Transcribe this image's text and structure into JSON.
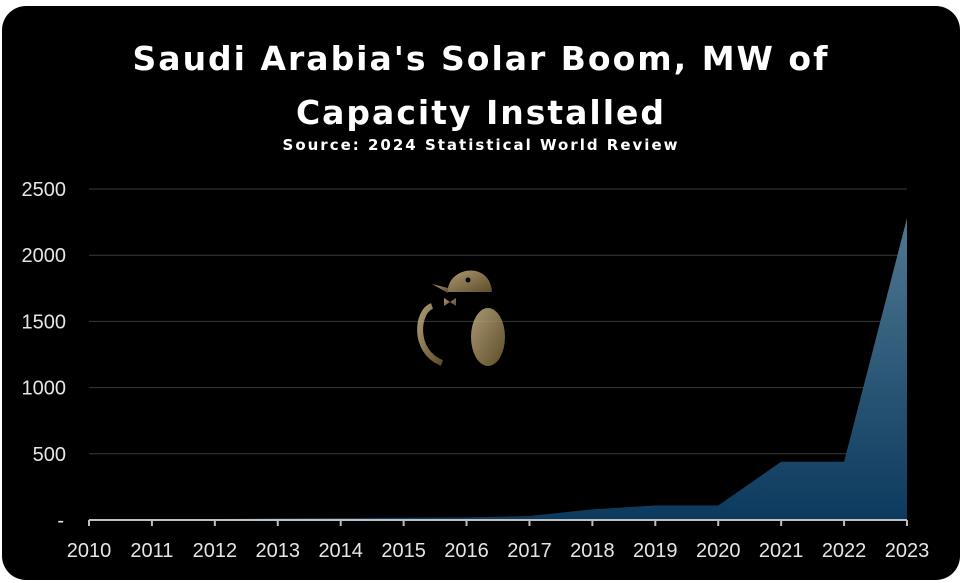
{
  "chart_data": {
    "type": "area",
    "title": "Saudi Arabia's Solar Boom, MW of Capacity Installed",
    "title_line1": "Saudi Arabia's Solar Boom, MW of",
    "title_line2": "Capacity Installed",
    "subtitle": "Source: 2024 Statistical World Review",
    "xlabel": "",
    "ylabel": "",
    "x": [
      "2010",
      "2011",
      "2012",
      "2013",
      "2014",
      "2015",
      "2016",
      "2017",
      "2018",
      "2019",
      "2020",
      "2021",
      "2022",
      "2023"
    ],
    "series": [
      {
        "name": "MW of Capacity Installed",
        "values": [
          1,
          2,
          7,
          12,
          15,
          17,
          20,
          30,
          80,
          110,
          110,
          440,
          440,
          2280
        ]
      }
    ],
    "yticks": [
      "-",
      "500",
      "1000",
      "1500",
      "2000",
      "2500"
    ],
    "ylim": [
      0,
      2500
    ],
    "grid": true,
    "colors": {
      "fill_top": "#4f7891",
      "fill_bottom": "#0c3a5e",
      "grid": "#3a3a3a",
      "axis": "#bfbfbf"
    },
    "watermark_icon": "penguin-logo-icon"
  }
}
